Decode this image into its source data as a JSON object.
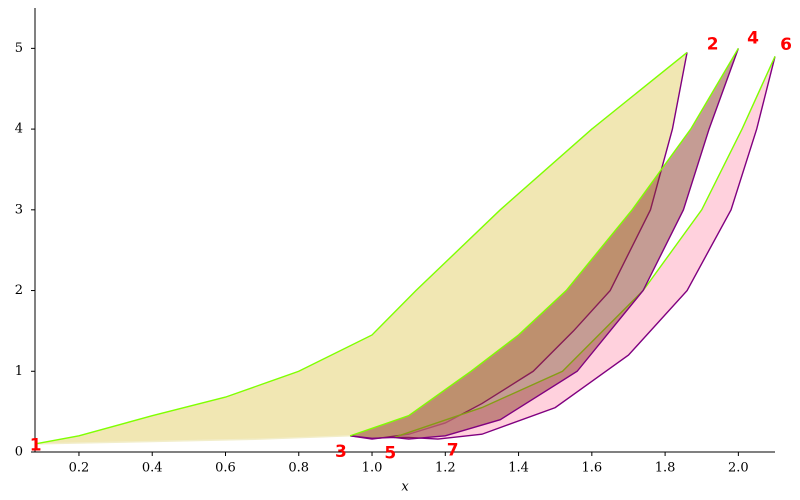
{
  "chart_data": {
    "type": "filled-curves",
    "xlabel": "x",
    "xlim": [
      0.08,
      2.1
    ],
    "ylim": [
      0,
      5.5
    ],
    "xticks": [
      0.2,
      0.4,
      0.6,
      0.8,
      {
        "value": 1.0,
        "label": "1.0"
      },
      1.2,
      1.4,
      1.6,
      1.8,
      {
        "value": 2.0,
        "label": "2.0"
      }
    ],
    "yticks": [
      0,
      1,
      2,
      3,
      4,
      5
    ],
    "areas": [
      {
        "fill": "#eee3a6",
        "opacity": 0.85,
        "upper": {
          "color": "#7fff00",
          "x": [
            0.08,
            0.2,
            0.4,
            0.6,
            0.8,
            1.0,
            1.12,
            1.35,
            1.6,
            1.86
          ],
          "values": [
            0.1,
            0.2,
            0.45,
            0.68,
            1.0,
            1.45,
            2.0,
            3.0,
            4.0,
            4.95
          ]
        },
        "lower": [
          {
            "color": "#f2eecb",
            "x": [
              0.08,
              0.4,
              0.7,
              0.94
            ],
            "values": [
              0.1,
              0.13,
              0.16,
              0.2
            ]
          },
          {
            "color": "#800080",
            "x": [
              0.94,
              1.0,
              1.1,
              1.2,
              1.3,
              1.44,
              1.55,
              1.65,
              1.76,
              1.82,
              1.86
            ],
            "values": [
              0.2,
              0.16,
              0.22,
              0.36,
              0.6,
              1.0,
              1.5,
              2.0,
              3.0,
              4.0,
              4.95
            ]
          }
        ]
      },
      {
        "fill": "#ffb3c6",
        "opacity": 0.6,
        "upper": {
          "color": "#7fff00",
          "x": [
            1.06,
            1.3,
            1.52,
            1.74,
            1.9,
            2.01,
            2.1
          ],
          "values": [
            0.18,
            0.55,
            1.0,
            2.0,
            3.0,
            4.0,
            4.9
          ]
        },
        "lower": [
          {
            "color": "#800080",
            "x": [
              1.06,
              1.1,
              1.18,
              1.3,
              1.5,
              1.7,
              1.86,
              1.98,
              2.05,
              2.1
            ],
            "values": [
              0.18,
              0.18,
              0.16,
              0.22,
              0.55,
              1.2,
              2.0,
              3.0,
              4.0,
              4.9
            ]
          }
        ]
      },
      {
        "fill": "#8b3a2a",
        "opacity": 0.5,
        "upper": {
          "color": "#7fff00",
          "x": [
            0.94,
            1.1,
            1.27,
            1.4,
            1.53,
            1.71,
            1.87,
            2.0
          ],
          "values": [
            0.2,
            0.45,
            1.0,
            1.45,
            2.0,
            3.0,
            4.0,
            5.0
          ]
        },
        "lower": [
          {
            "color": "#800080",
            "x": [
              0.94,
              1.0,
              1.06,
              1.1,
              1.2,
              1.35,
              1.56,
              1.74,
              1.85,
              1.92,
              2.0
            ],
            "values": [
              0.2,
              0.17,
              0.18,
              0.16,
              0.2,
              0.4,
              1.0,
              2.0,
              3.0,
              4.0,
              5.0
            ]
          }
        ]
      }
    ],
    "annotations": [
      {
        "text": "1",
        "x": 0.082,
        "y": 0.08
      },
      {
        "text": "2",
        "x": 1.93,
        "y": 5.05
      },
      {
        "text": "3",
        "x": 0.915,
        "y": 0.0
      },
      {
        "text": "4",
        "x": 2.04,
        "y": 5.12
      },
      {
        "text": "5",
        "x": 1.05,
        "y": -0.02
      },
      {
        "text": "6",
        "x": 2.13,
        "y": 5.04
      },
      {
        "text": "7",
        "x": 1.22,
        "y": 0.02
      }
    ]
  }
}
